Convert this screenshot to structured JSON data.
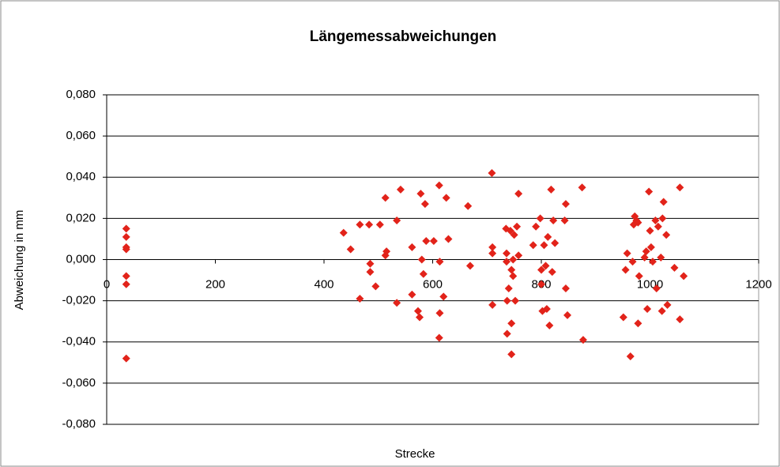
{
  "chart_data": {
    "type": "scatter",
    "title": "Längemessabweichungen",
    "x_label": "Strecke",
    "y_label": "Abweichung in mm",
    "color": "#e2231a",
    "grid": true,
    "xlim": [
      0,
      1200
    ],
    "xticks": [
      0,
      200,
      400,
      600,
      800,
      1000,
      1200
    ],
    "ylim": [
      -0.08,
      0.08
    ],
    "yticks": [
      {
        "value": 0.08,
        "label": "0,080"
      },
      {
        "value": 0.06,
        "label": "0,060"
      },
      {
        "value": 0.04,
        "label": "0,040"
      },
      {
        "value": 0.02,
        "label": "0,020"
      },
      {
        "value": 0,
        "label": "0,000"
      },
      {
        "value": -0.02,
        "label": "-0,020"
      },
      {
        "value": -0.04,
        "label": "-0,040"
      },
      {
        "value": -0.06,
        "label": "-0,060"
      },
      {
        "value": -0.08,
        "label": "-0,080"
      }
    ],
    "x": [
      36,
      36,
      36,
      36,
      36,
      36,
      36,
      436,
      449,
      466,
      466,
      483,
      485,
      485,
      495,
      503,
      513,
      513,
      515,
      534,
      534,
      541,
      562,
      562,
      573,
      576,
      578,
      580,
      583,
      586,
      588,
      602,
      612,
      613,
      613,
      612,
      620,
      625,
      629,
      665,
      669,
      709,
      710,
      710,
      710,
      735,
      736,
      736,
      737,
      737,
      740,
      743,
      745,
      745,
      745,
      748,
      748,
      750,
      752,
      755,
      758,
      758,
      785,
      790,
      798,
      800,
      800,
      802,
      805,
      808,
      810,
      812,
      815,
      818,
      820,
      822,
      825,
      843,
      845,
      845,
      848,
      875,
      877,
      951,
      955,
      958,
      964,
      968,
      970,
      972,
      975,
      978,
      978,
      980,
      990,
      993,
      995,
      998,
      1000,
      1002,
      1005,
      1010,
      1012,
      1015,
      1020,
      1022,
      1023,
      1025,
      1030,
      1032,
      1045,
      1055,
      1055,
      1062
    ],
    "y": [
      0.015,
      0.011,
      0.006,
      0.005,
      -0.008,
      -0.012,
      -0.048,
      0.013,
      0.005,
      0.017,
      -0.019,
      0.017,
      -0.002,
      -0.006,
      -0.013,
      0.017,
      0.03,
      0.002,
      0.004,
      0.019,
      -0.021,
      0.034,
      0.006,
      -0.017,
      -0.025,
      -0.028,
      0.032,
      0.0,
      -0.007,
      0.027,
      0.009,
      0.009,
      0.036,
      -0.001,
      -0.026,
      -0.038,
      -0.018,
      0.03,
      0.01,
      0.026,
      -0.003,
      0.042,
      0.006,
      0.003,
      -0.022,
      0.015,
      0.003,
      -0.001,
      -0.02,
      -0.036,
      -0.014,
      0.014,
      -0.005,
      -0.046,
      -0.031,
      0.0,
      -0.008,
      0.012,
      -0.02,
      0.016,
      0.032,
      0.002,
      0.007,
      0.016,
      0.02,
      -0.005,
      -0.012,
      -0.025,
      0.007,
      -0.003,
      -0.024,
      0.011,
      -0.032,
      0.034,
      -0.006,
      0.019,
      0.008,
      0.019,
      0.027,
      -0.014,
      -0.027,
      0.035,
      -0.039,
      -0.028,
      -0.005,
      0.003,
      -0.047,
      -0.001,
      0.017,
      0.021,
      0.019,
      0.018,
      -0.031,
      -0.008,
      0.001,
      0.004,
      -0.024,
      0.033,
      0.014,
      0.006,
      -0.001,
      0.019,
      -0.014,
      0.016,
      0.001,
      -0.025,
      0.02,
      0.028,
      0.012,
      -0.022,
      -0.004,
      0.035,
      -0.029,
      -0.008
    ]
  }
}
